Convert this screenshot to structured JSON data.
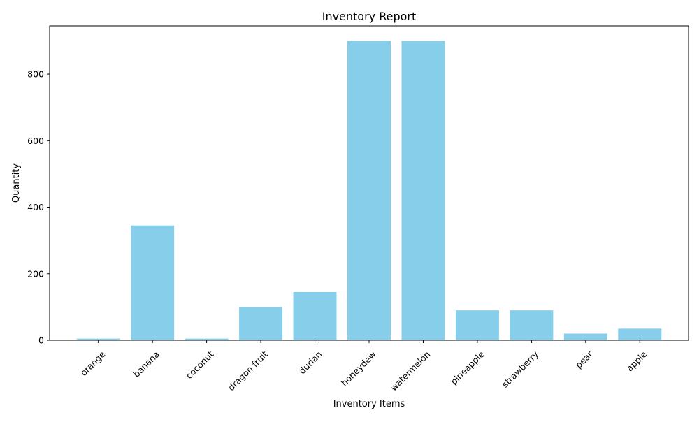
{
  "chart_data": {
    "type": "bar",
    "title": "Inventory Report",
    "xlabel": "Inventory Items",
    "ylabel": "Quantity",
    "categories": [
      "orange",
      "banana",
      "coconut",
      "dragon fruit",
      "durian",
      "honeydew",
      "watermelon",
      "pineapple",
      "strawberry",
      "pear",
      "apple"
    ],
    "values": [
      5,
      345,
      5,
      100,
      145,
      900,
      900,
      90,
      90,
      20,
      35
    ],
    "ylim": [
      0,
      945
    ],
    "yticks": [
      0,
      200,
      400,
      600,
      800
    ],
    "bar_color": "#87ceeb",
    "grid": false,
    "legend": "none"
  }
}
